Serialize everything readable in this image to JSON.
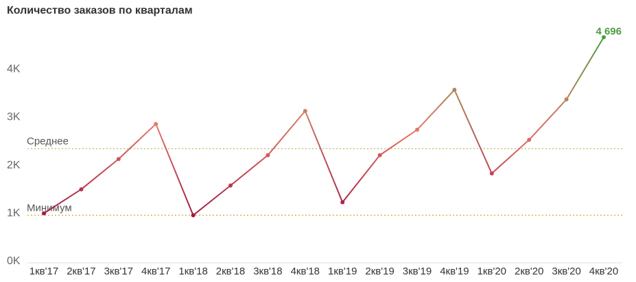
{
  "chart_data": {
    "type": "line",
    "title": "Количество заказов по кварталам",
    "categories": [
      "1кв'17",
      "2кв'17",
      "3кв'17",
      "4кв'17",
      "1кв'18",
      "2кв'18",
      "3кв'18",
      "4кв'18",
      "1кв'19",
      "2кв'19",
      "3кв'19",
      "4кв'19",
      "1кв'20",
      "2кв'20",
      "3кв'20",
      "4кв'20"
    ],
    "values": [
      1030,
      1530,
      2160,
      2890,
      990,
      1610,
      2240,
      3160,
      1260,
      2240,
      2770,
      3600,
      1860,
      2560,
      3400,
      4696
    ],
    "value_labels": [
      null,
      null,
      null,
      null,
      null,
      null,
      null,
      null,
      null,
      null,
      null,
      null,
      null,
      null,
      null,
      "4 696"
    ],
    "color_scale": [
      "#a3173f",
      "#e8796b",
      "#4e9a3f"
    ],
    "ylim": [
      0,
      4900
    ],
    "yticks": [
      {
        "value": 0,
        "label": "0K"
      },
      {
        "value": 1000,
        "label": "1K"
      },
      {
        "value": 2000,
        "label": "2K"
      },
      {
        "value": 3000,
        "label": "3K"
      },
      {
        "value": 4000,
        "label": "4K"
      }
    ],
    "reference_lines": [
      {
        "label": "Среднее",
        "value": 2375,
        "color": "#c8c27a"
      },
      {
        "label": "Минимум",
        "value": 990,
        "color": "#d9b24a"
      }
    ]
  }
}
